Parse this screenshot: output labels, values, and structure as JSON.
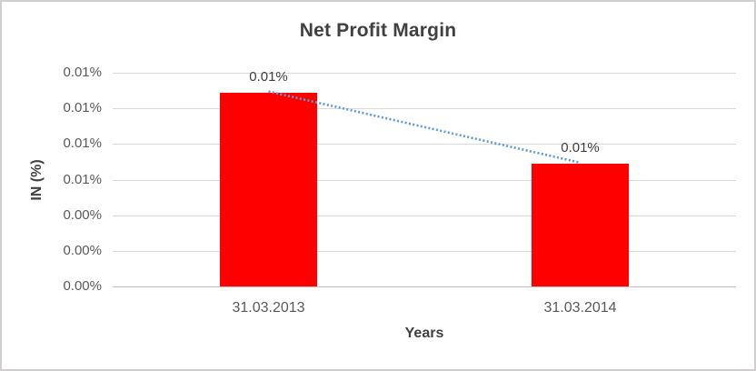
{
  "frame": {
    "background": "#ffffff",
    "border_color": "#d0cece"
  },
  "chart_data": {
    "type": "bar",
    "title": "Net Profit Margin",
    "xlabel": "Years",
    "ylabel": "IN (%)",
    "categories": [
      "31.03.2013",
      "31.03.2014"
    ],
    "values": [
      0.0109,
      0.0069
    ],
    "value_unit": "percent",
    "data_labels": [
      "0.01%",
      "0.01%"
    ],
    "y_tick_labels_top_to_bottom": [
      "0.01%",
      "0.01%",
      "0.01%",
      "0.01%",
      "0.00%",
      "0.00%",
      "0.00%"
    ],
    "ylim": [
      0,
      0.012
    ],
    "grid": true,
    "legend": "none",
    "bar_color": "#ff0000",
    "text_colors": {
      "title": "#404040",
      "ticks": "#595959",
      "data_labels": "#404040",
      "axis_titles": "#404040"
    },
    "gridline_color": "#d9d9d9",
    "axis_line_color": "#bfbfbf",
    "trendline": {
      "style": "dotted",
      "color": "#5b9bd5",
      "connects": "tops of bars",
      "from_value": 0.0109,
      "to_value": 0.0069
    }
  }
}
